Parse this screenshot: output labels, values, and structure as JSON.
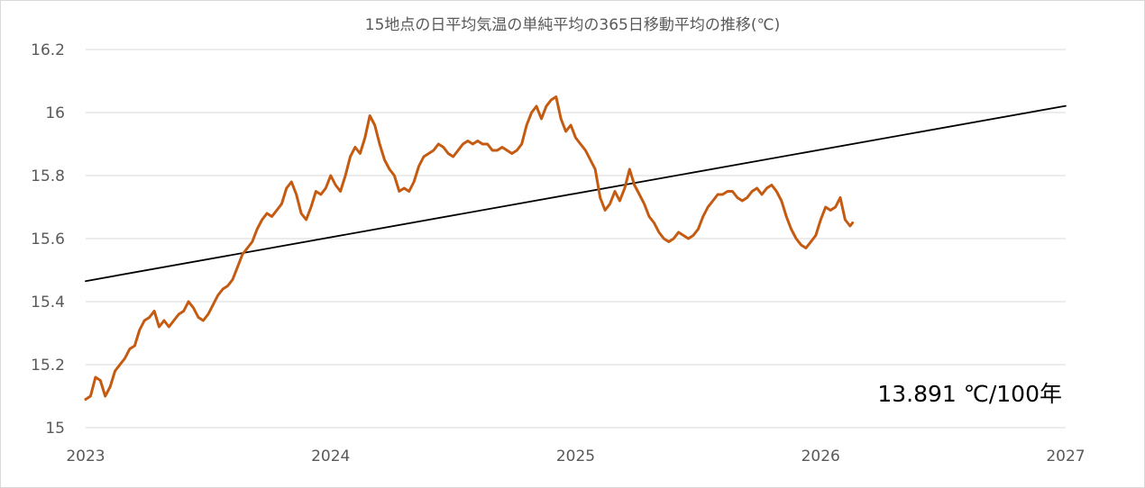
{
  "chart_data": {
    "type": "line",
    "title": "15地点の日平均気温の単純平均の365日移動平均の推移(℃)",
    "xlabel": "",
    "ylabel": "",
    "x_ticks": [
      "2023",
      "2024",
      "2025",
      "2026",
      "2027"
    ],
    "xlim": [
      2023,
      2027
    ],
    "y_ticks": [
      "15",
      "15.2",
      "15.4",
      "15.6",
      "15.8",
      "16",
      "16.2"
    ],
    "ylim": [
      15,
      16.2
    ],
    "grid": "horizontal",
    "annotation": "13.891 ℃/100年",
    "series": [
      {
        "role": "moving-average",
        "color": "#c55a11",
        "points": [
          [
            2023.0,
            15.09
          ],
          [
            2023.02,
            15.1
          ],
          [
            2023.04,
            15.16
          ],
          [
            2023.06,
            15.15
          ],
          [
            2023.08,
            15.1
          ],
          [
            2023.1,
            15.13
          ],
          [
            2023.12,
            15.18
          ],
          [
            2023.14,
            15.2
          ],
          [
            2023.16,
            15.22
          ],
          [
            2023.18,
            15.25
          ],
          [
            2023.2,
            15.26
          ],
          [
            2023.22,
            15.31
          ],
          [
            2023.24,
            15.34
          ],
          [
            2023.26,
            15.35
          ],
          [
            2023.28,
            15.37
          ],
          [
            2023.3,
            15.32
          ],
          [
            2023.32,
            15.34
          ],
          [
            2023.34,
            15.32
          ],
          [
            2023.36,
            15.34
          ],
          [
            2023.38,
            15.36
          ],
          [
            2023.4,
            15.37
          ],
          [
            2023.42,
            15.4
          ],
          [
            2023.44,
            15.38
          ],
          [
            2023.46,
            15.35
          ],
          [
            2023.48,
            15.34
          ],
          [
            2023.5,
            15.36
          ],
          [
            2023.52,
            15.39
          ],
          [
            2023.54,
            15.42
          ],
          [
            2023.56,
            15.44
          ],
          [
            2023.58,
            15.45
          ],
          [
            2023.6,
            15.47
          ],
          [
            2023.62,
            15.51
          ],
          [
            2023.64,
            15.55
          ],
          [
            2023.66,
            15.57
          ],
          [
            2023.68,
            15.59
          ],
          [
            2023.7,
            15.63
          ],
          [
            2023.72,
            15.66
          ],
          [
            2023.74,
            15.68
          ],
          [
            2023.76,
            15.67
          ],
          [
            2023.78,
            15.69
          ],
          [
            2023.8,
            15.71
          ],
          [
            2023.82,
            15.76
          ],
          [
            2023.84,
            15.78
          ],
          [
            2023.86,
            15.74
          ],
          [
            2023.88,
            15.68
          ],
          [
            2023.9,
            15.66
          ],
          [
            2023.92,
            15.7
          ],
          [
            2023.94,
            15.75
          ],
          [
            2023.96,
            15.74
          ],
          [
            2023.98,
            15.76
          ],
          [
            2024.0,
            15.8
          ],
          [
            2024.02,
            15.77
          ],
          [
            2024.04,
            15.75
          ],
          [
            2024.06,
            15.8
          ],
          [
            2024.08,
            15.86
          ],
          [
            2024.1,
            15.89
          ],
          [
            2024.12,
            15.87
          ],
          [
            2024.14,
            15.92
          ],
          [
            2024.16,
            15.99
          ],
          [
            2024.18,
            15.96
          ],
          [
            2024.2,
            15.9
          ],
          [
            2024.22,
            15.85
          ],
          [
            2024.24,
            15.82
          ],
          [
            2024.26,
            15.8
          ],
          [
            2024.28,
            15.75
          ],
          [
            2024.3,
            15.76
          ],
          [
            2024.32,
            15.75
          ],
          [
            2024.34,
            15.78
          ],
          [
            2024.36,
            15.83
          ],
          [
            2024.38,
            15.86
          ],
          [
            2024.4,
            15.87
          ],
          [
            2024.42,
            15.88
          ],
          [
            2024.44,
            15.9
          ],
          [
            2024.46,
            15.89
          ],
          [
            2024.48,
            15.87
          ],
          [
            2024.5,
            15.86
          ],
          [
            2024.52,
            15.88
          ],
          [
            2024.54,
            15.9
          ],
          [
            2024.56,
            15.91
          ],
          [
            2024.58,
            15.9
          ],
          [
            2024.6,
            15.91
          ],
          [
            2024.62,
            15.9
          ],
          [
            2024.64,
            15.9
          ],
          [
            2024.66,
            15.88
          ],
          [
            2024.68,
            15.88
          ],
          [
            2024.7,
            15.89
          ],
          [
            2024.72,
            15.88
          ],
          [
            2024.74,
            15.87
          ],
          [
            2024.76,
            15.88
          ],
          [
            2024.78,
            15.9
          ],
          [
            2024.8,
            15.96
          ],
          [
            2024.82,
            16.0
          ],
          [
            2024.84,
            16.02
          ],
          [
            2024.86,
            15.98
          ],
          [
            2024.88,
            16.02
          ],
          [
            2024.9,
            16.04
          ],
          [
            2024.92,
            16.05
          ],
          [
            2024.94,
            15.98
          ],
          [
            2024.96,
            15.94
          ],
          [
            2024.98,
            15.96
          ],
          [
            2025.0,
            15.92
          ],
          [
            2025.02,
            15.9
          ],
          [
            2025.04,
            15.88
          ],
          [
            2025.06,
            15.85
          ],
          [
            2025.08,
            15.82
          ],
          [
            2025.1,
            15.73
          ],
          [
            2025.12,
            15.69
          ],
          [
            2025.14,
            15.71
          ],
          [
            2025.16,
            15.75
          ],
          [
            2025.18,
            15.72
          ],
          [
            2025.2,
            15.76
          ],
          [
            2025.22,
            15.82
          ],
          [
            2025.24,
            15.77
          ],
          [
            2025.26,
            15.74
          ],
          [
            2025.28,
            15.71
          ],
          [
            2025.3,
            15.67
          ],
          [
            2025.32,
            15.65
          ],
          [
            2025.34,
            15.62
          ],
          [
            2025.36,
            15.6
          ],
          [
            2025.38,
            15.59
          ],
          [
            2025.4,
            15.6
          ],
          [
            2025.42,
            15.62
          ],
          [
            2025.44,
            15.61
          ],
          [
            2025.46,
            15.6
          ],
          [
            2025.48,
            15.61
          ],
          [
            2025.5,
            15.63
          ],
          [
            2025.52,
            15.67
          ],
          [
            2025.54,
            15.7
          ],
          [
            2025.56,
            15.72
          ],
          [
            2025.58,
            15.74
          ],
          [
            2025.6,
            15.74
          ],
          [
            2025.62,
            15.75
          ],
          [
            2025.64,
            15.75
          ],
          [
            2025.66,
            15.73
          ],
          [
            2025.68,
            15.72
          ],
          [
            2025.7,
            15.73
          ],
          [
            2025.72,
            15.75
          ],
          [
            2025.74,
            15.76
          ],
          [
            2025.76,
            15.74
          ],
          [
            2025.78,
            15.76
          ],
          [
            2025.8,
            15.77
          ],
          [
            2025.82,
            15.75
          ],
          [
            2025.84,
            15.72
          ],
          [
            2025.86,
            15.67
          ],
          [
            2025.88,
            15.63
          ],
          [
            2025.9,
            15.6
          ],
          [
            2025.92,
            15.58
          ],
          [
            2025.94,
            15.57
          ],
          [
            2025.96,
            15.59
          ],
          [
            2025.98,
            15.61
          ],
          [
            2026.0,
            15.66
          ],
          [
            2026.02,
            15.7
          ],
          [
            2026.04,
            15.69
          ],
          [
            2026.06,
            15.7
          ],
          [
            2026.08,
            15.73
          ],
          [
            2026.1,
            15.66
          ],
          [
            2026.12,
            15.64
          ],
          [
            2026.13,
            15.65
          ]
        ]
      },
      {
        "role": "linear-trend",
        "color": "#000000",
        "points": [
          [
            2023.0,
            15.465
          ],
          [
            2027.0,
            16.021
          ]
        ]
      }
    ]
  }
}
